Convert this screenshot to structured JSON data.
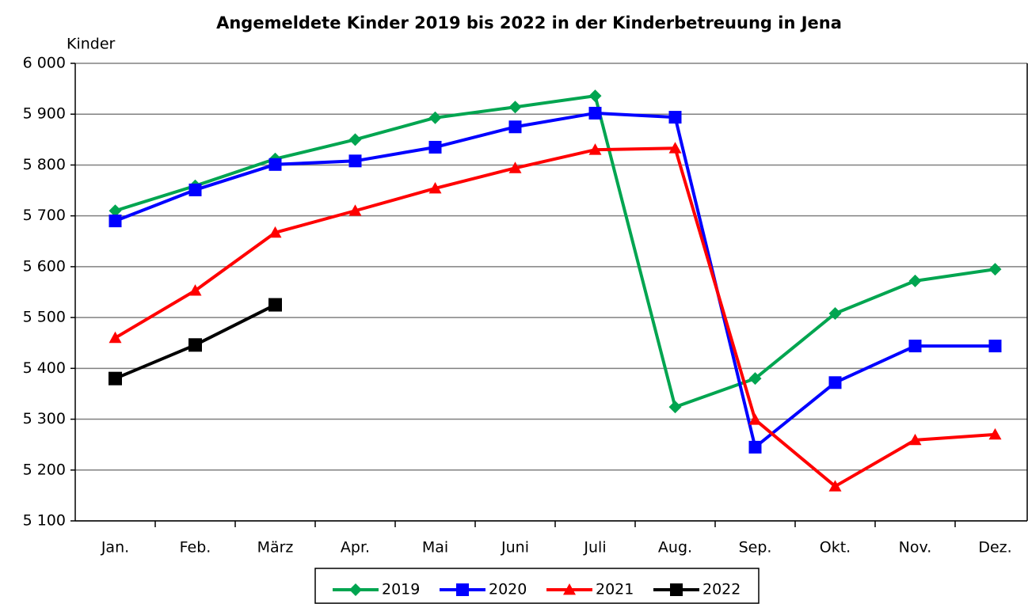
{
  "chart_data": {
    "type": "line",
    "title": "Angemeldete Kinder 2019 bis 2022 in der Kinderbetreuung in Jena",
    "y_label": "Kinder",
    "categories": [
      "Jan.",
      "Feb.",
      "März",
      "Apr.",
      "Mai",
      "Juni",
      "Juli",
      "Aug.",
      "Sep.",
      "Okt.",
      "Nov.",
      "Dez."
    ],
    "series": [
      {
        "name": "2019",
        "color": "#00a550",
        "marker": "diamond",
        "values": [
          5710,
          5759,
          5812,
          5850,
          5893,
          5914,
          5936,
          5324,
          5380,
          5508,
          5572,
          5595
        ]
      },
      {
        "name": "2020",
        "color": "#0000ff",
        "marker": "square",
        "values": [
          5690,
          5751,
          5801,
          5808,
          5835,
          5875,
          5902,
          5894,
          5245,
          5372,
          5444,
          5444
        ]
      },
      {
        "name": "2021",
        "color": "#ff0000",
        "marker": "triangle",
        "values": [
          5460,
          5553,
          5667,
          5710,
          5754,
          5794,
          5830,
          5833,
          5299,
          5168,
          5259,
          5270
        ]
      },
      {
        "name": "2022",
        "color": "#000000",
        "marker": "square",
        "values": [
          5380,
          5446,
          5525,
          null,
          null,
          null,
          null,
          null,
          null,
          null,
          null,
          null
        ]
      }
    ],
    "ylim": [
      5100,
      6000
    ],
    "yticks": [
      {
        "value": 5100,
        "label": "5 100"
      },
      {
        "value": 5200,
        "label": "5 200"
      },
      {
        "value": 5300,
        "label": "5 300"
      },
      {
        "value": 5400,
        "label": "5 400"
      },
      {
        "value": 5500,
        "label": "5 500"
      },
      {
        "value": 5600,
        "label": "5 600"
      },
      {
        "value": 5700,
        "label": "5 700"
      },
      {
        "value": 5800,
        "label": "5 800"
      },
      {
        "value": 5900,
        "label": "5 900"
      },
      {
        "value": 6000,
        "label": "6 000"
      }
    ],
    "grid": true,
    "legend": "bottom"
  }
}
